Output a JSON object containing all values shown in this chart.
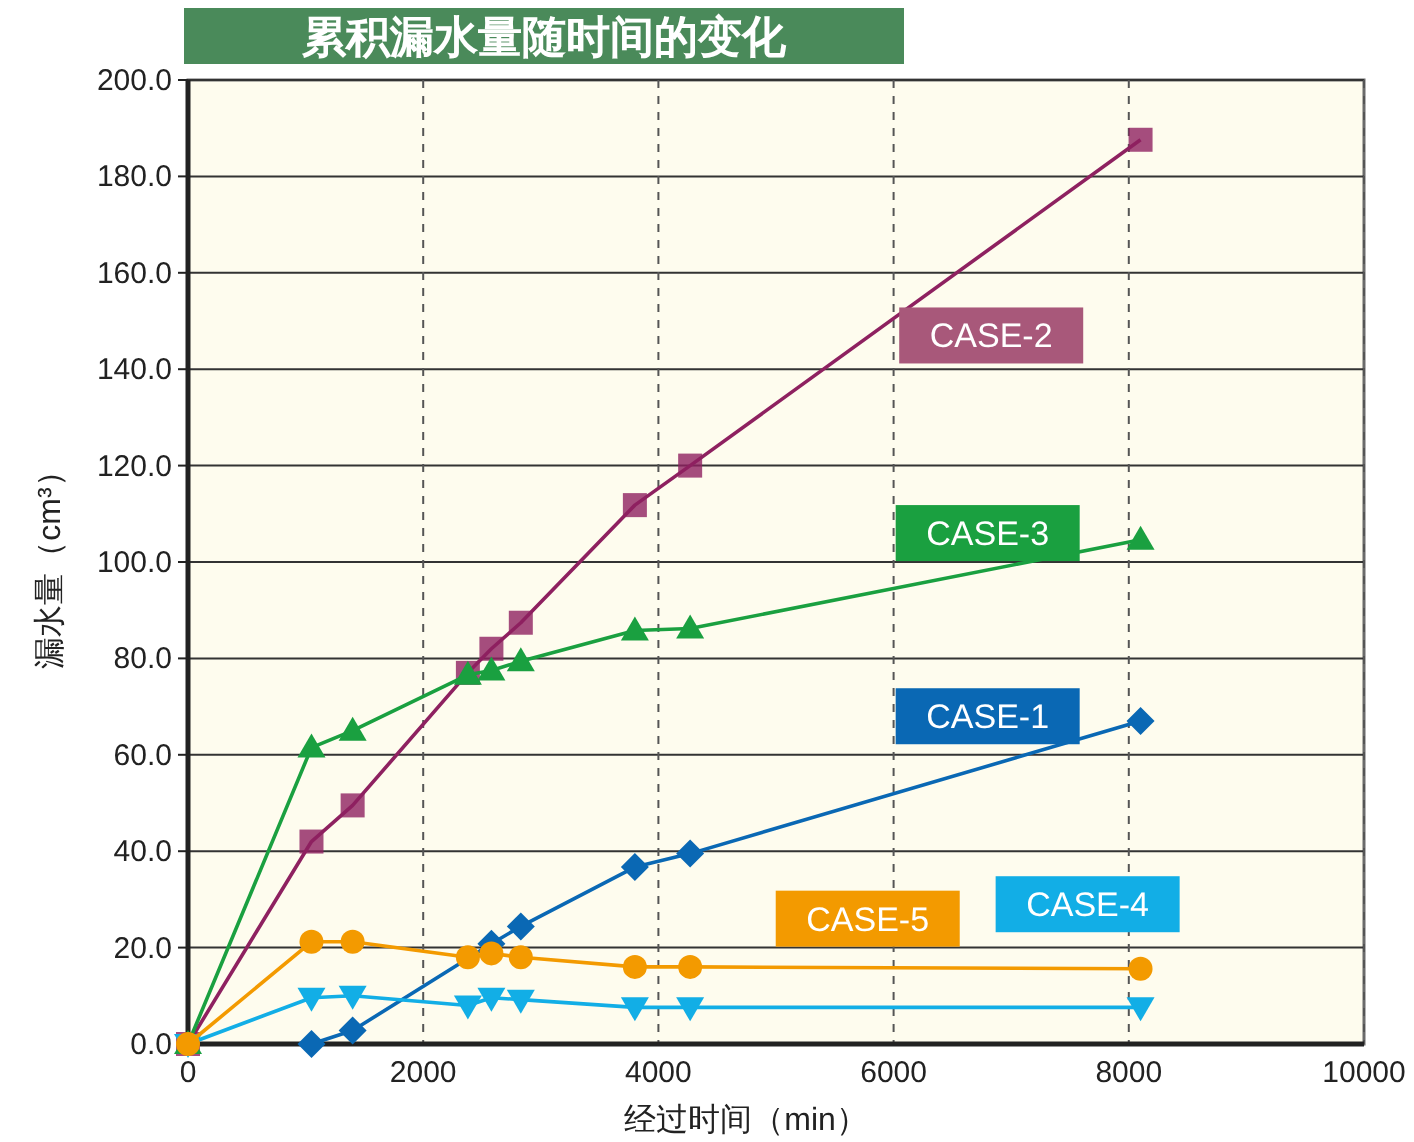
{
  "chart_data": {
    "type": "line",
    "title": "累积漏水量随时间的变化",
    "xlabel": "经过时间（min）",
    "ylabel": "漏水量（cm³）",
    "x": [
      0,
      1050,
      1400,
      2380,
      2580,
      2830,
      3800,
      4270,
      8100
    ],
    "xlim": [
      0,
      10000
    ],
    "xticks": [
      0,
      2000,
      4000,
      6000,
      8000,
      10000
    ],
    "ylim": [
      0,
      200
    ],
    "yticks": [
      {
        "value": 0,
        "label": "0.0"
      },
      {
        "value": 20,
        "label": "20.0"
      },
      {
        "value": 40,
        "label": "40.0"
      },
      {
        "value": 60,
        "label": "60.0"
      },
      {
        "value": 80,
        "label": "80.0"
      },
      {
        "value": 100,
        "label": "100.0"
      },
      {
        "value": 120,
        "label": "120.0"
      },
      {
        "value": 140,
        "label": "140.0"
      },
      {
        "value": 160,
        "label": "160.0"
      },
      {
        "value": 180,
        "label": "180.0"
      },
      {
        "value": 200,
        "label": "200.0"
      }
    ],
    "grid": true,
    "line_style": "solid",
    "series": [
      {
        "name": "CASE-1",
        "color": "#0a68b4",
        "marker": "diamond",
        "x": [
          1050,
          1400,
          2580,
          2830,
          3800,
          4270,
          8100
        ],
        "values": [
          0,
          2.8,
          20.8,
          24.4,
          36.7,
          39.5,
          67
        ]
      },
      {
        "name": "CASE-2",
        "color": "#8e2160",
        "marker": "square",
        "values": [
          0,
          42,
          49.5,
          77,
          82,
          87.4,
          111.8,
          120,
          187.6
        ]
      },
      {
        "name": "CASE-3",
        "color": "#1aa040",
        "marker": "triangle",
        "values": [
          0,
          61.5,
          65,
          76.6,
          77.5,
          79.4,
          85.8,
          86.2,
          104.6
        ]
      },
      {
        "name": "CASE-4",
        "color": "#12aee6",
        "marker": "triangle-down",
        "values": [
          0,
          9.6,
          10,
          8,
          9.6,
          9.2,
          7.6,
          7.6,
          7.6
        ]
      },
      {
        "name": "CASE-5",
        "color": "#f39a00",
        "marker": "circle",
        "values": [
          0,
          21.2,
          21.2,
          18,
          18.8,
          18,
          16,
          16,
          15.6
        ]
      }
    ]
  }
}
